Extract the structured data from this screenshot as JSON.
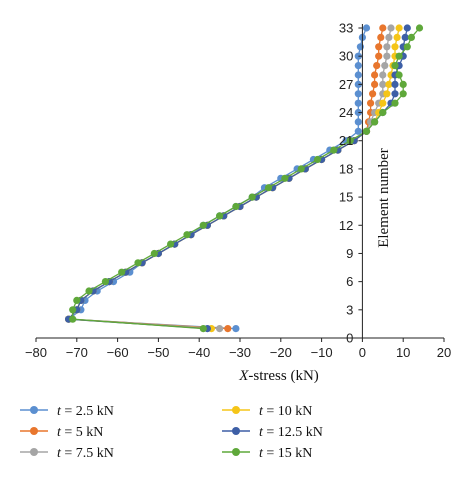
{
  "chart_data": {
    "type": "line",
    "xlabel": "X-stress (kN)",
    "ylabel": "Element number",
    "xlim": [
      -80,
      20
    ],
    "ylim": [
      0,
      33
    ],
    "x_ticks": [
      "−80",
      "−70",
      "−60",
      "−50",
      "−40",
      "−30",
      "−20",
      "−10",
      "0",
      "10",
      "20"
    ],
    "y_ticks": [
      "0",
      "3",
      "6",
      "9",
      "12",
      "15",
      "18",
      "21",
      "24",
      "27",
      "30",
      "33"
    ],
    "grid": false,
    "legend_position": "bottom",
    "series": [
      {
        "name": "t = 2.5 kN",
        "legend_var": "t",
        "legend_value": " = 2.5 kN",
        "color": "#5b8fd0",
        "points": [
          [
            -31,
            1
          ],
          [
            -72,
            2
          ],
          [
            -69,
            3
          ],
          [
            -68,
            4
          ],
          [
            -65,
            5
          ],
          [
            -61,
            6
          ],
          [
            -57,
            7
          ],
          [
            -54,
            8
          ],
          [
            -50,
            9
          ],
          [
            -46,
            10
          ],
          [
            -42,
            11
          ],
          [
            -39,
            12
          ],
          [
            -35,
            13
          ],
          [
            -31,
            14
          ],
          [
            -27,
            15
          ],
          [
            -24,
            16
          ],
          [
            -20,
            17
          ],
          [
            -16,
            18
          ],
          [
            -12,
            19
          ],
          [
            -8,
            20
          ],
          [
            -4,
            21
          ],
          [
            -1,
            22
          ],
          [
            -1,
            23
          ],
          [
            -1,
            24
          ],
          [
            -1,
            25
          ],
          [
            -1,
            26
          ],
          [
            -1,
            27
          ],
          [
            -1,
            28
          ],
          [
            -1,
            29
          ],
          [
            -1,
            30
          ],
          [
            -0.5,
            31
          ],
          [
            0,
            32
          ],
          [
            1,
            33
          ]
        ]
      },
      {
        "name": "t = 5 kN",
        "legend_var": "t",
        "legend_value": " = 5 kN",
        "color": "#e8762d",
        "points": [
          [
            -33,
            1
          ],
          [
            -72,
            2
          ],
          [
            -70,
            3
          ],
          [
            -69,
            4
          ],
          [
            -66,
            5
          ],
          [
            -62,
            6
          ],
          [
            -58,
            7
          ],
          [
            -54,
            8
          ],
          [
            -50,
            9
          ],
          [
            -46,
            10
          ],
          [
            -42,
            11
          ],
          [
            -38,
            12
          ],
          [
            -34,
            13
          ],
          [
            -30,
            14
          ],
          [
            -26,
            15
          ],
          [
            -22,
            16
          ],
          [
            -18,
            17
          ],
          [
            -14,
            18
          ],
          [
            -10,
            19
          ],
          [
            -6,
            20
          ],
          [
            -2,
            21
          ],
          [
            1,
            22
          ],
          [
            1.5,
            23
          ],
          [
            2,
            24
          ],
          [
            2,
            25
          ],
          [
            2.5,
            26
          ],
          [
            3,
            27
          ],
          [
            3,
            28
          ],
          [
            3.5,
            29
          ],
          [
            4,
            30
          ],
          [
            4,
            31
          ],
          [
            4.5,
            32
          ],
          [
            5,
            33
          ]
        ]
      },
      {
        "name": "t = 7.5 kN",
        "legend_var": "t",
        "legend_value": " = 7.5 kN",
        "color": "#a5a5a5",
        "points": [
          [
            -35,
            1
          ],
          [
            -72,
            2
          ],
          [
            -70,
            3
          ],
          [
            -69,
            4
          ],
          [
            -66,
            5
          ],
          [
            -62,
            6
          ],
          [
            -58,
            7
          ],
          [
            -54,
            8
          ],
          [
            -50,
            9
          ],
          [
            -46,
            10
          ],
          [
            -42,
            11
          ],
          [
            -38,
            12
          ],
          [
            -34,
            13
          ],
          [
            -30,
            14
          ],
          [
            -26,
            15
          ],
          [
            -22,
            16
          ],
          [
            -18,
            17
          ],
          [
            -14,
            18
          ],
          [
            -10,
            19
          ],
          [
            -6,
            20
          ],
          [
            -2,
            21
          ],
          [
            1,
            22
          ],
          [
            2,
            23
          ],
          [
            3,
            24
          ],
          [
            4,
            25
          ],
          [
            5,
            26
          ],
          [
            5,
            27
          ],
          [
            5,
            28
          ],
          [
            5.5,
            29
          ],
          [
            6,
            30
          ],
          [
            6,
            31
          ],
          [
            6.5,
            32
          ],
          [
            7,
            33
          ]
        ]
      },
      {
        "name": "t = 10 kN",
        "legend_var": "t",
        "legend_value": " = 10 kN",
        "color": "#f5c518",
        "points": [
          [
            -37,
            1
          ],
          [
            -72,
            2
          ],
          [
            -70,
            3
          ],
          [
            -69,
            4
          ],
          [
            -66,
            5
          ],
          [
            -62,
            6
          ],
          [
            -58,
            7
          ],
          [
            -54,
            8
          ],
          [
            -50,
            9
          ],
          [
            -46,
            10
          ],
          [
            -42,
            11
          ],
          [
            -38,
            12
          ],
          [
            -34,
            13
          ],
          [
            -30,
            14
          ],
          [
            -26,
            15
          ],
          [
            -22,
            16
          ],
          [
            -18,
            17
          ],
          [
            -14,
            18
          ],
          [
            -10,
            19
          ],
          [
            -6,
            20
          ],
          [
            -2,
            21
          ],
          [
            1,
            22
          ],
          [
            3,
            23
          ],
          [
            4,
            24
          ],
          [
            5,
            25
          ],
          [
            6,
            26
          ],
          [
            6.5,
            27
          ],
          [
            7,
            28
          ],
          [
            7.5,
            29
          ],
          [
            8,
            30
          ],
          [
            8,
            31
          ],
          [
            8.5,
            32
          ],
          [
            9,
            33
          ]
        ]
      },
      {
        "name": "t = 12.5 kN",
        "legend_var": "t",
        "legend_value": " = 12.5 kN",
        "color": "#3d5fa6",
        "points": [
          [
            -38,
            1
          ],
          [
            -72,
            2
          ],
          [
            -70,
            3
          ],
          [
            -69,
            4
          ],
          [
            -66,
            5
          ],
          [
            -62,
            6
          ],
          [
            -58,
            7
          ],
          [
            -54,
            8
          ],
          [
            -50,
            9
          ],
          [
            -46,
            10
          ],
          [
            -42,
            11
          ],
          [
            -38,
            12
          ],
          [
            -34,
            13
          ],
          [
            -30,
            14
          ],
          [
            -26,
            15
          ],
          [
            -22,
            16
          ],
          [
            -18,
            17
          ],
          [
            -14,
            18
          ],
          [
            -10,
            19
          ],
          [
            -6,
            20
          ],
          [
            -2,
            21
          ],
          [
            1,
            22
          ],
          [
            3,
            23
          ],
          [
            5,
            24
          ],
          [
            7,
            25
          ],
          [
            8,
            26
          ],
          [
            8,
            27
          ],
          [
            8,
            28
          ],
          [
            9,
            29
          ],
          [
            10,
            30
          ],
          [
            10,
            31
          ],
          [
            10.5,
            32
          ],
          [
            11,
            33
          ]
        ]
      },
      {
        "name": "t = 15 kN",
        "legend_var": "t",
        "legend_value": " = 15 kN",
        "color": "#5fa83a",
        "points": [
          [
            -39,
            1
          ],
          [
            -71,
            2
          ],
          [
            -71,
            3
          ],
          [
            -70,
            4
          ],
          [
            -67,
            5
          ],
          [
            -63,
            6
          ],
          [
            -59,
            7
          ],
          [
            -55,
            8
          ],
          [
            -51,
            9
          ],
          [
            -47,
            10
          ],
          [
            -43,
            11
          ],
          [
            -39,
            12
          ],
          [
            -35,
            13
          ],
          [
            -31,
            14
          ],
          [
            -27,
            15
          ],
          [
            -23,
            16
          ],
          [
            -19,
            17
          ],
          [
            -15,
            18
          ],
          [
            -11,
            19
          ],
          [
            -7,
            20
          ],
          [
            -3,
            21
          ],
          [
            1,
            22
          ],
          [
            3,
            23
          ],
          [
            5,
            24
          ],
          [
            8,
            25
          ],
          [
            10,
            26
          ],
          [
            10,
            27
          ],
          [
            9,
            28
          ],
          [
            8,
            29
          ],
          [
            9,
            30
          ],
          [
            11,
            31
          ],
          [
            12,
            32
          ],
          [
            14,
            33
          ]
        ]
      }
    ]
  }
}
